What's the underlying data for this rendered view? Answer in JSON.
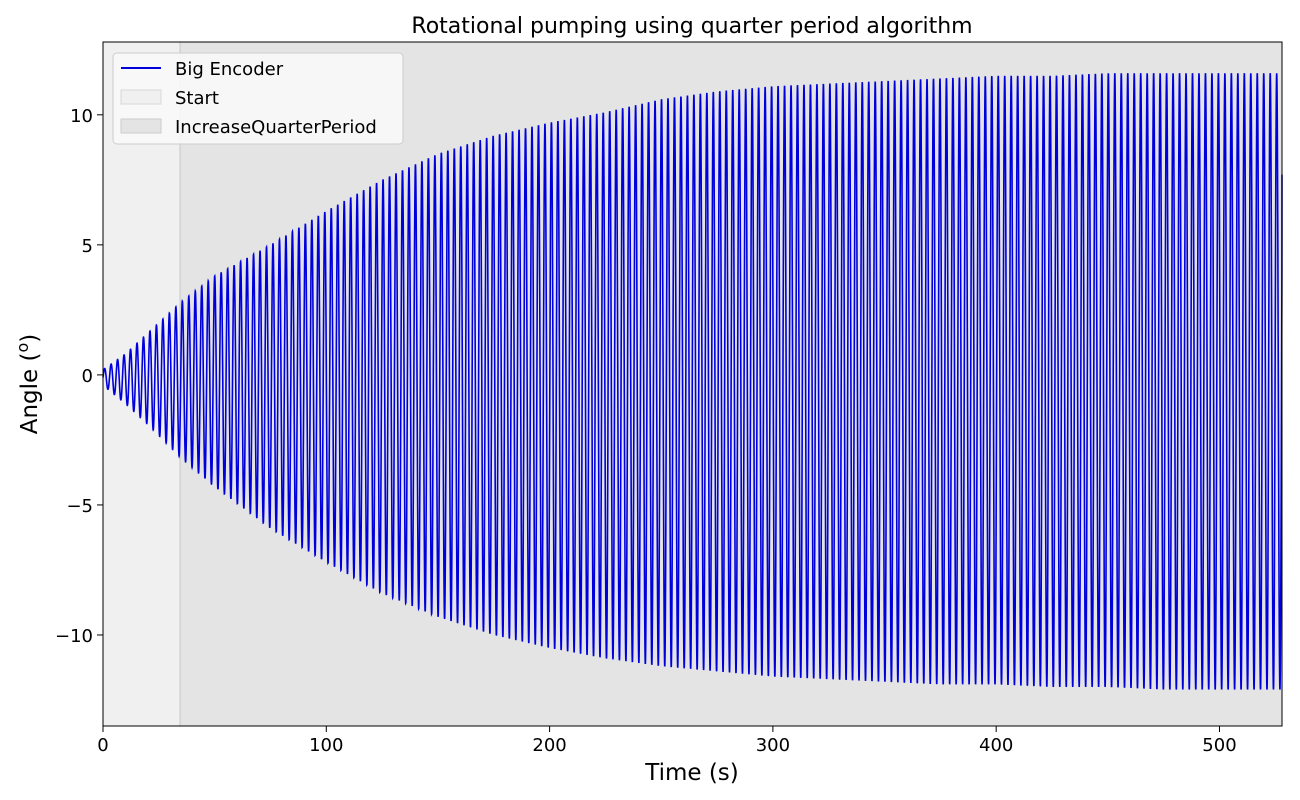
{
  "chart_data": {
    "type": "line",
    "title": "Rotational pumping using quarter period algorithm",
    "xlabel": "Time (s)",
    "ylabel": "Angle (",
    "ylabel_superscript": "o",
    "ylabel_suffix": ")",
    "xlim": [
      0,
      528
    ],
    "ylim": [
      -13.5,
      12.8
    ],
    "x_ticks": [
      0,
      100,
      200,
      300,
      400,
      500
    ],
    "y_ticks": [
      -10,
      -5,
      0,
      5,
      10
    ],
    "x_tick_labels": [
      "0",
      "100",
      "200",
      "300",
      "400",
      "500"
    ],
    "y_tick_labels": [
      "−10",
      "−5",
      "0",
      "5",
      "10"
    ],
    "grid": false,
    "legend_position": "top-left",
    "regions": [
      {
        "name": "Start",
        "x_start": 0,
        "x_end": 34.5,
        "color": "#f0f0f0"
      },
      {
        "name": "IncreaseQuarterPeriod",
        "x_start": 34.5,
        "x_end": 528,
        "color": "#e4e4e4"
      }
    ],
    "series": [
      {
        "name": "Big Encoder",
        "color": "#0000dd",
        "oscillation_period_s": 2.9,
        "envelope": {
          "t": [
            0,
            10,
            20,
            35,
            50,
            75,
            100,
            125,
            150,
            175,
            200,
            225,
            250,
            275,
            300,
            325,
            350,
            375,
            400,
            425,
            450,
            475,
            500,
            528
          ],
          "max": [
            0.2,
            0.8,
            1.6,
            2.8,
            3.8,
            5.0,
            6.3,
            7.5,
            8.5,
            9.2,
            9.7,
            10.1,
            10.6,
            10.9,
            11.1,
            11.2,
            11.3,
            11.4,
            11.5,
            11.5,
            11.6,
            11.6,
            11.6,
            11.6
          ],
          "min": [
            -0.4,
            -1.1,
            -1.9,
            -3.2,
            -4.3,
            -5.9,
            -7.2,
            -8.4,
            -9.3,
            -10.0,
            -10.5,
            -10.9,
            -11.2,
            -11.4,
            -11.6,
            -11.7,
            -11.8,
            -11.9,
            -11.9,
            -12.0,
            -12.0,
            -12.1,
            -12.1,
            -12.1
          ]
        },
        "end_value": 7.7
      }
    ]
  }
}
